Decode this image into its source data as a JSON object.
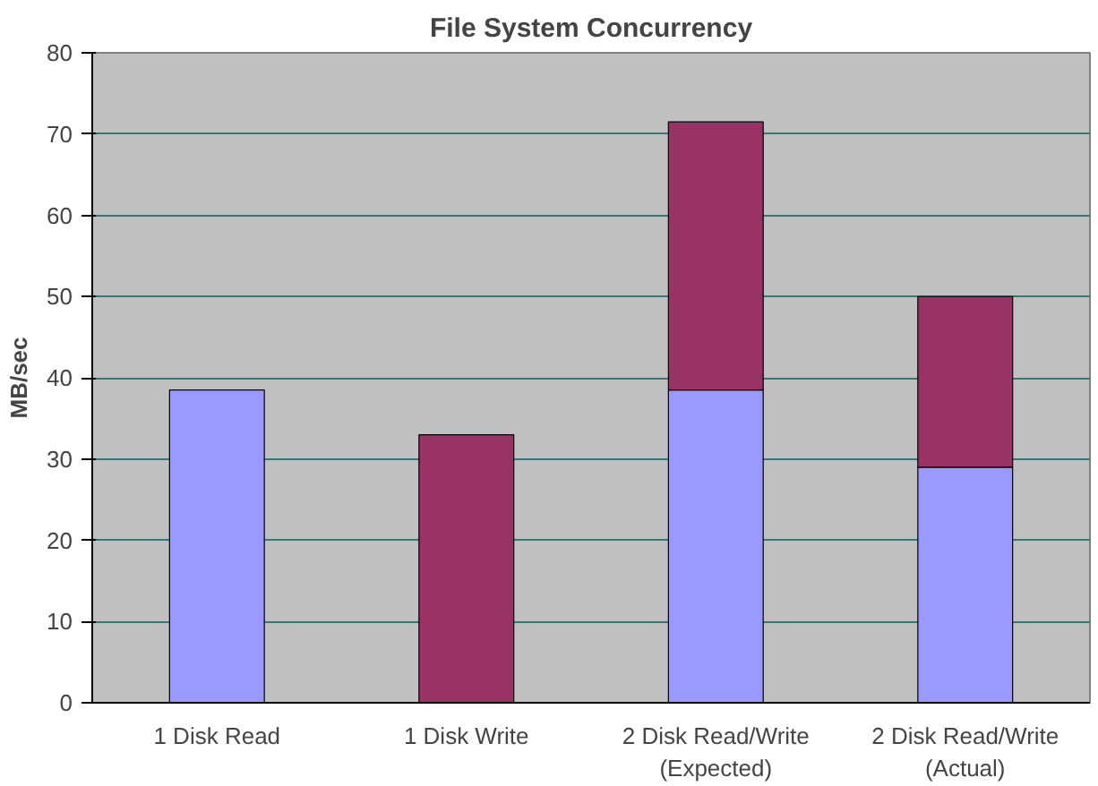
{
  "chart_data": {
    "type": "bar",
    "title": "File System Concurrency",
    "ylabel": "MB/sec",
    "stacked": true,
    "categories": [
      "1 Disk Read",
      "1 Disk Write",
      "2 Disk Read/Write\n(Expected)",
      "2 Disk Read/Write\n(Actual)"
    ],
    "series": [
      {
        "color": "#9999ff",
        "values": [
          38.5,
          0,
          38.5,
          29
        ]
      },
      {
        "color": "#993366",
        "values": [
          0,
          33,
          33,
          21
        ]
      }
    ],
    "ylim": [
      0,
      80
    ],
    "yticks": [
      0,
      10,
      20,
      30,
      40,
      50,
      60,
      70,
      80
    ],
    "grid": "y"
  }
}
